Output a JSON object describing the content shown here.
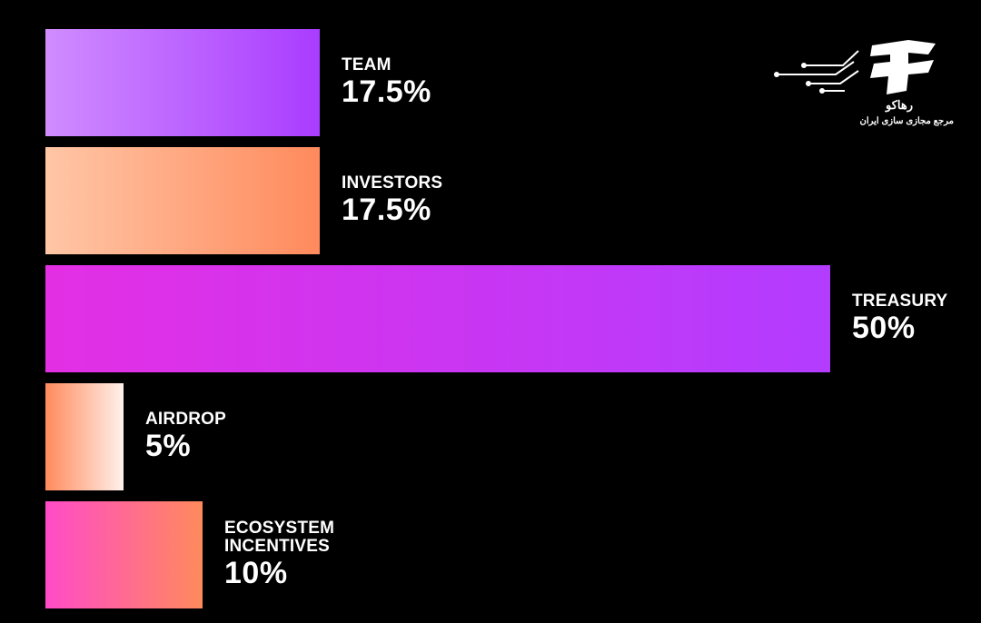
{
  "chart_data": {
    "type": "bar",
    "orientation": "horizontal",
    "categories": [
      "TEAM",
      "INVESTORS",
      "TREASURY",
      "AIRDROP",
      "ECOSYSTEM INCENTIVES"
    ],
    "category_lines": [
      [
        "TEAM"
      ],
      [
        "INVESTORS"
      ],
      [
        "TREASURY"
      ],
      [
        "AIRDROP"
      ],
      [
        "ECOSYSTEM",
        "INCENTIVES"
      ]
    ],
    "values": [
      17.5,
      17.5,
      50,
      5,
      10
    ],
    "value_labels": [
      "17.5%",
      "17.5%",
      "50%",
      "5%",
      "10%"
    ],
    "unit": "%",
    "xlim": [
      0,
      50
    ],
    "grid": false,
    "legend": "none",
    "bar_gradients": [
      [
        "#d08cff",
        "#a93cff"
      ],
      [
        "#ffc6a6",
        "#ff8a5c"
      ],
      [
        "#e32fe4",
        "#b33cff"
      ],
      [
        "#ff8a5c",
        "#fff1ec"
      ],
      [
        "#ff4bc8",
        "#ff8a5c"
      ]
    ]
  },
  "watermark": {
    "name": "رهاکو",
    "subtitle": "مرجع مجازی سازی ایران"
  },
  "colors": {
    "background": "#000000",
    "text": "#ffffff"
  }
}
